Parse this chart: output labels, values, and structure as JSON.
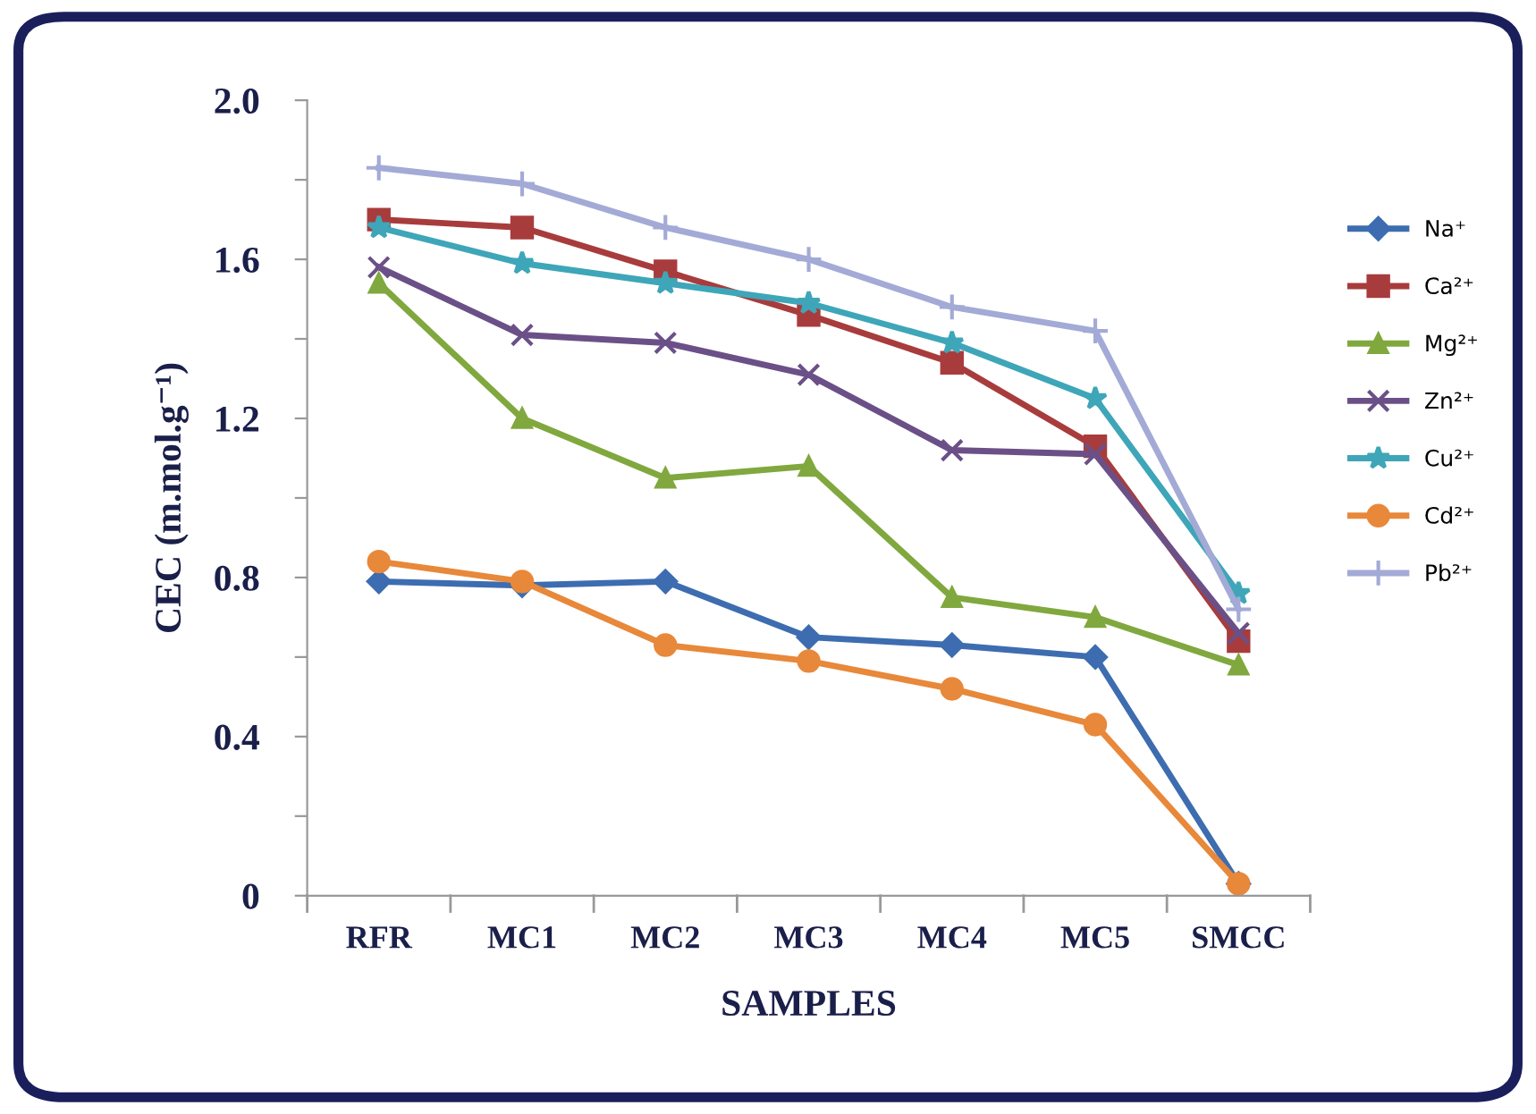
{
  "chart_data": {
    "type": "line",
    "xlabel": "SAMPLES",
    "ylabel": "CEC (m.mol.g⁻¹)",
    "categories": [
      "RFR",
      "MC1",
      "MC2",
      "MC3",
      "MC4",
      "MC5",
      "SMCC"
    ],
    "ylim": [
      0,
      2.0
    ],
    "yticks": [
      0,
      {
        "value": 0.2,
        "label": null
      },
      0.4,
      {
        "value": 0.6,
        "label": null
      },
      0.8,
      {
        "value": 1.0,
        "label": null
      },
      1.2,
      {
        "value": 1.4,
        "label": null
      },
      1.6,
      {
        "value": 1.8,
        "label": null
      },
      {
        "value": 2,
        "label": "2.0"
      }
    ],
    "grid": false,
    "legend": "right",
    "series": [
      {
        "name": "Na⁺",
        "color": "#3d6db0",
        "marker": "diamond",
        "values": [
          0.79,
          0.78,
          0.79,
          0.65,
          0.63,
          0.6,
          0.03
        ]
      },
      {
        "name": "Ca²⁺",
        "color": "#a83c3c",
        "marker": "square",
        "values": [
          1.7,
          1.68,
          1.57,
          1.46,
          1.34,
          1.13,
          0.64
        ]
      },
      {
        "name": "Mg²⁺",
        "color": "#80a83e",
        "marker": "triangle",
        "values": [
          1.54,
          1.2,
          1.05,
          1.08,
          0.75,
          0.7,
          0.58
        ]
      },
      {
        "name": "Zn²⁺",
        "color": "#6b5088",
        "marker": "x",
        "values": [
          1.58,
          1.41,
          1.39,
          1.31,
          1.12,
          1.11,
          0.66
        ]
      },
      {
        "name": "Cu²⁺",
        "color": "#3ea6b8",
        "marker": "star",
        "values": [
          1.68,
          1.59,
          1.54,
          1.49,
          1.39,
          1.25,
          0.76
        ]
      },
      {
        "name": "Cd²⁺",
        "color": "#e8883a",
        "marker": "circle",
        "values": [
          0.84,
          0.79,
          0.63,
          0.59,
          0.52,
          0.43,
          0.03
        ]
      },
      {
        "name": "Pb²⁺",
        "color": "#a3aad6",
        "marker": "cross",
        "values": [
          1.83,
          1.79,
          1.68,
          1.6,
          1.48,
          1.42,
          0.72
        ]
      }
    ]
  }
}
